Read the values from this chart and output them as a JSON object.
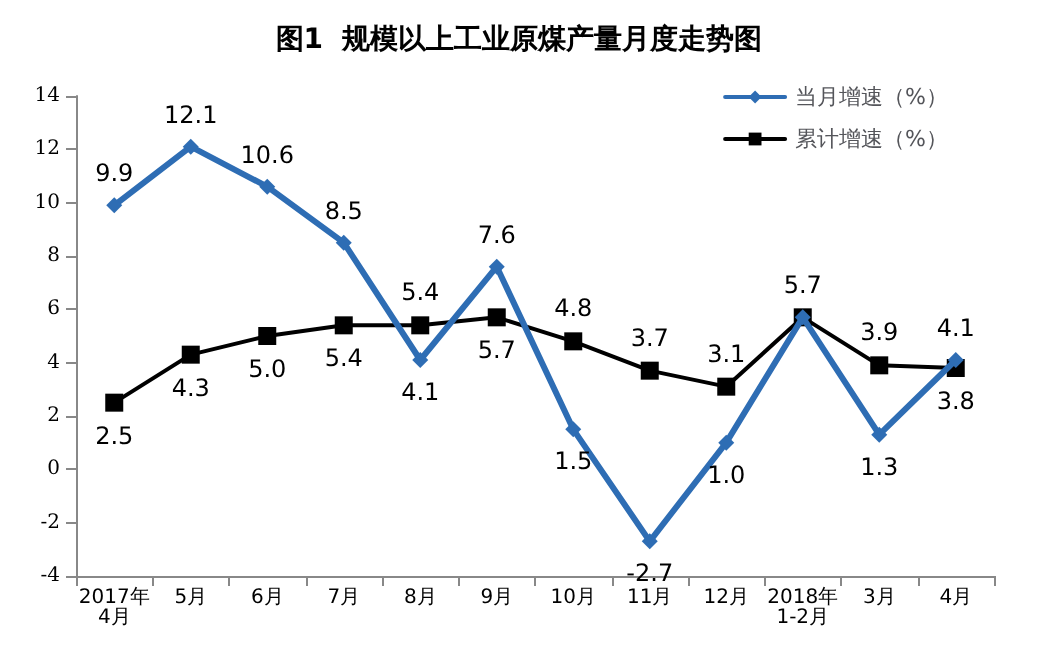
{
  "chart_data": {
    "type": "line",
    "title": "图1  规模以上工业原煤产量月度走势图",
    "categories": [
      "2017年4月",
      "5月",
      "6月",
      "7月",
      "8月",
      "9月",
      "10月",
      "11月",
      "12月",
      "2018年1-2月",
      "3月",
      "4月"
    ],
    "series": [
      {
        "name": "当月增速（%）",
        "color": "#2e6db4",
        "marker": "diamond",
        "values": [
          9.9,
          12.1,
          10.6,
          8.5,
          4.1,
          7.6,
          1.5,
          -2.7,
          1.0,
          5.7,
          1.3,
          4.1
        ],
        "value_labels": [
          "9.9",
          "12.1",
          "10.6",
          "8.5",
          "4.1",
          "7.6",
          "1.5",
          "-2.7",
          "1.0",
          "5.7",
          "1.3",
          "4.1"
        ]
      },
      {
        "name": "累计增速（%）",
        "color": "#000000",
        "marker": "square",
        "values": [
          2.5,
          4.3,
          5.0,
          5.4,
          5.4,
          5.7,
          4.8,
          3.7,
          3.1,
          5.7,
          3.9,
          3.8
        ],
        "value_labels": [
          "2.5",
          "4.3",
          "5.0",
          "5.4",
          "5.4",
          "5.7",
          "4.8",
          "3.7",
          "3.1",
          null,
          "3.9",
          "3.8"
        ]
      }
    ],
    "ylim": [
      -4,
      14
    ],
    "yticks": [
      -4,
      -2,
      0,
      2,
      4,
      6,
      8,
      10,
      12,
      14
    ],
    "legend": "top right"
  }
}
